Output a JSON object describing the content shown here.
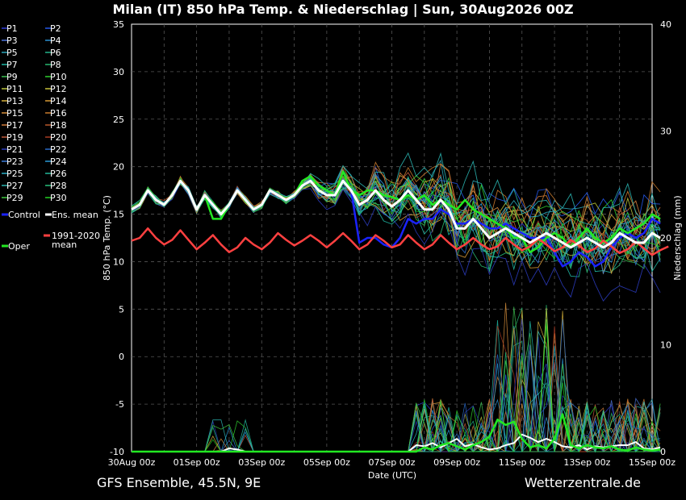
{
  "title": "Milan  (IT)  850 hPa Temp. & Niederschlag | Sun, 30Aug2026 00Z",
  "footer_left": "GFS Ensemble, 45.5N, 9E",
  "footer_right": "Wetterzentrale.de",
  "chart_data": {
    "type": "line",
    "xlabel": "Date (UTC)",
    "ylabel_left": "850 hPa Temp. (°C)",
    "ylabel_right": "Niederschlag (mm)",
    "ylim_left": [
      -10,
      35
    ],
    "ylim_right": [
      0,
      40
    ],
    "y_ticks_left": [
      -10,
      -5,
      0,
      5,
      10,
      15,
      20,
      25,
      30,
      35
    ],
    "y_ticks_right": [
      0,
      10,
      20,
      30,
      40
    ],
    "grid": true,
    "x_tick_labels": [
      "30Aug 00z",
      "01Sep 00z",
      "03Sep 00z",
      "05Sep 00z",
      "07Sep 00z",
      "09Sep 00z",
      "11Sep 00z",
      "13Sep 00z",
      "15Sep 00z"
    ],
    "x_range_hours": [
      0,
      384
    ],
    "step_hours": 6,
    "legend": [
      {
        "label": "P1",
        "color": "#2f3bd6"
      },
      {
        "label": "P2",
        "color": "#2557e8"
      },
      {
        "label": "P3",
        "color": "#4a73d8"
      },
      {
        "label": "P4",
        "color": "#2a8fd0"
      },
      {
        "label": "P5",
        "color": "#2aa6b8"
      },
      {
        "label": "P6",
        "color": "#22b28a"
      },
      {
        "label": "P7",
        "color": "#1fb6a2"
      },
      {
        "label": "P8",
        "color": "#28b870"
      },
      {
        "label": "P9",
        "color": "#3cc050"
      },
      {
        "label": "P10",
        "color": "#2fcf2f"
      },
      {
        "label": "P11",
        "color": "#b8c23a"
      },
      {
        "label": "P12",
        "color": "#c9c23c"
      },
      {
        "label": "P13",
        "color": "#d6b03a"
      },
      {
        "label": "P14",
        "color": "#d99a35"
      },
      {
        "label": "P15",
        "color": "#d8903c"
      },
      {
        "label": "P16",
        "color": "#c87a2e"
      },
      {
        "label": "P17",
        "color": "#d07a3a"
      },
      {
        "label": "P18",
        "color": "#b8582a"
      },
      {
        "label": "P19",
        "color": "#c05a3a"
      },
      {
        "label": "P20",
        "color": "#a83a22"
      },
      {
        "label": "P21",
        "color": "#2a3ab8"
      },
      {
        "label": "P22",
        "color": "#2a6ac8"
      },
      {
        "label": "P23",
        "color": "#3a7ad8"
      },
      {
        "label": "P24",
        "color": "#2a9ad8"
      },
      {
        "label": "P25",
        "color": "#2ab0c8"
      },
      {
        "label": "P26",
        "color": "#22b89a"
      },
      {
        "label": "P27",
        "color": "#2ab4b0"
      },
      {
        "label": "P28",
        "color": "#28c07a"
      },
      {
        "label": "P29",
        "color": "#3ec83e"
      },
      {
        "label": "P30",
        "color": "#22d022"
      },
      {
        "label": "Control",
        "color": "#1a22ff"
      },
      {
        "label": "Ens. mean",
        "color": "#ffffff"
      },
      {
        "label": "Oper",
        "color": "#22e822"
      },
      {
        "label": "1991-2020 mean",
        "color": "#ff4040"
      }
    ],
    "series": [
      {
        "name": "Ens. mean",
        "color": "#ffffff",
        "values": [
          15.5,
          16,
          17.5,
          16.5,
          16,
          17,
          18.5,
          17.5,
          15.5,
          17,
          16,
          15,
          16,
          17.5,
          16.5,
          15.5,
          16,
          17.5,
          17,
          16.5,
          17,
          18,
          18.5,
          17.5,
          17,
          17,
          18.5,
          17.5,
          16,
          16.5,
          17.5,
          16.5,
          15.8,
          16.5,
          17.5,
          16.5,
          15.5,
          15.5,
          16.5,
          15.5,
          13.5,
          13.5,
          14.5,
          13.5,
          12.5,
          13,
          13.5,
          13,
          12.5,
          12,
          12.5,
          13,
          12.5,
          12,
          11.5,
          12,
          12.5,
          12,
          11.5,
          12,
          13,
          12.5,
          12,
          12,
          13,
          12.5
        ]
      },
      {
        "name": "Control",
        "color": "#1a22ff",
        "values": [
          15.5,
          16,
          17.5,
          16.5,
          16,
          17,
          18.5,
          17.5,
          15.5,
          17,
          16,
          15,
          16,
          17.5,
          16.5,
          15.5,
          16,
          17.5,
          17,
          16.5,
          17,
          18,
          18.5,
          17.5,
          17,
          17,
          18.5,
          17.5,
          12,
          12.5,
          12.5,
          11.8,
          11.5,
          12.5,
          14.5,
          14,
          14.5,
          14.5,
          15.5,
          15,
          14,
          14,
          14.5,
          14,
          13.5,
          13.5,
          14,
          13.5,
          13,
          12.5,
          12.5,
          12.5,
          11,
          9.5,
          10,
          11,
          10.5,
          9.5,
          10,
          11.5,
          12.5,
          13,
          12.5,
          13,
          14.5,
          14
        ]
      },
      {
        "name": "Oper",
        "color": "#22e822",
        "values": [
          15.5,
          16,
          17.5,
          16.5,
          16,
          17,
          18.5,
          17.5,
          15.5,
          17,
          14.5,
          14.5,
          16,
          17.5,
          16.5,
          15.5,
          16,
          17.5,
          17,
          16.5,
          17,
          18.5,
          19,
          18,
          17.5,
          17,
          19.5,
          17.5,
          17,
          17.5,
          17.5,
          17,
          16.8,
          16.5,
          17,
          16.5,
          17,
          16,
          16.5,
          16,
          15.5,
          16.5,
          15.5,
          15,
          14.5,
          14,
          13.5,
          12.5,
          12.5,
          11,
          11.5,
          12.5,
          13,
          12.5,
          11.5,
          12.5,
          13.5,
          12.5,
          12,
          12.5,
          13.5,
          13,
          13.5,
          14,
          15,
          14.5
        ]
      },
      {
        "name": "1991-2020 mean",
        "color": "#ff4040",
        "values": [
          12.2,
          12.5,
          13.5,
          12.5,
          11.8,
          12.3,
          13.3,
          12.3,
          11.3,
          12,
          12.8,
          11.8,
          11,
          11.5,
          12.5,
          11.8,
          11.3,
          12,
          13,
          12.3,
          11.7,
          12.2,
          12.8,
          12.2,
          11.5,
          12.2,
          13,
          12.2,
          11.3,
          11.8,
          12.8,
          12.2,
          11.5,
          11.8,
          12.8,
          12,
          11.3,
          11.8,
          12.8,
          12,
          11.3,
          11.8,
          12.5,
          11.8,
          11.3,
          11.6,
          12.5,
          11.8,
          11.2,
          11.6,
          12.4,
          11.8,
          11.1,
          11.5,
          12.3,
          11.7,
          11,
          11.4,
          12.2,
          11.6,
          10.9,
          11.3,
          12.1,
          11.4,
          10.7,
          11.2,
          11.6
        ]
      }
    ],
    "precip_series": [
      {
        "name": "Ens. mean",
        "color": "#ffffff",
        "values_mm": [
          0,
          0,
          0,
          0,
          0,
          0,
          0,
          0,
          0,
          0,
          0,
          0,
          0.3,
          0.2,
          0,
          0,
          0,
          0,
          0,
          0,
          0,
          0,
          0,
          0,
          0,
          0,
          0,
          0,
          0,
          0,
          0,
          0,
          0,
          0,
          0,
          0.6,
          0.5,
          0.8,
          0.4,
          0.8,
          1.2,
          0.5,
          0.7,
          0.4,
          0.2,
          0.3,
          0.6,
          0.8,
          1.6,
          1.3,
          0.9,
          1.2,
          0.9,
          0.5,
          0.4,
          0.6,
          0.2,
          0.5,
          0.4,
          0.5,
          0.6,
          0.6,
          0.9,
          0.3,
          0.2,
          0.4
        ]
      },
      {
        "name": "Oper",
        "color": "#22e822",
        "values_mm": [
          0,
          0,
          0,
          0,
          0,
          0,
          0,
          0,
          0,
          0,
          0,
          0,
          0,
          0,
          0,
          0,
          0,
          0,
          0,
          0,
          0,
          0,
          0,
          0,
          0,
          0,
          0,
          0,
          0,
          0,
          0,
          0,
          0,
          0,
          0,
          0,
          0.4,
          0.2,
          0.6,
          0.8,
          0.5,
          0.2,
          0.6,
          0.9,
          1.4,
          3,
          2.5,
          2.8,
          1.2,
          0.4,
          0.6,
          0.3,
          1.2,
          3.5,
          0.6,
          0.3,
          0.6,
          0.4,
          0.3,
          0.5,
          0.2,
          0.1,
          0.4,
          0.2,
          0.1,
          0.2
        ]
      }
    ]
  }
}
